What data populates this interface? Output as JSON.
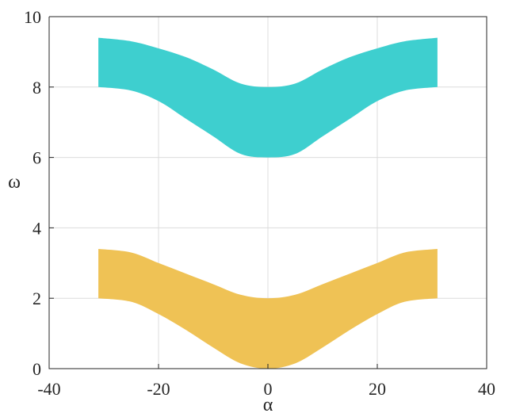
{
  "chart_data": {
    "type": "area",
    "xlabel": "α",
    "ylabel": "ω",
    "xlim": [
      -40,
      40
    ],
    "ylim": [
      0,
      10
    ],
    "xticks": [
      -40,
      -20,
      0,
      20,
      40
    ],
    "yticks": [
      0,
      2,
      4,
      6,
      8,
      10
    ],
    "grid": true,
    "legend": "none",
    "bands": [
      {
        "color": "#3ecfcf",
        "x": [
          -31,
          -25,
          -20,
          -15,
          -10,
          -5,
          0,
          5,
          10,
          15,
          20,
          25,
          31
        ],
        "upper": [
          9.4,
          9.3,
          9.1,
          8.85,
          8.5,
          8.1,
          8.0,
          8.1,
          8.5,
          8.85,
          9.1,
          9.3,
          9.4
        ],
        "lower": [
          8.0,
          7.9,
          7.6,
          7.1,
          6.6,
          6.1,
          6.0,
          6.1,
          6.6,
          7.1,
          7.6,
          7.9,
          8.0
        ]
      },
      {
        "color": "#efc255",
        "x": [
          -31,
          -25,
          -20,
          -15,
          -10,
          -5,
          0,
          5,
          10,
          15,
          20,
          25,
          31
        ],
        "upper": [
          3.4,
          3.3,
          3.0,
          2.7,
          2.4,
          2.1,
          2.0,
          2.1,
          2.4,
          2.7,
          3.0,
          3.3,
          3.4
        ],
        "lower": [
          2.0,
          1.9,
          1.55,
          1.1,
          0.6,
          0.15,
          0.0,
          0.15,
          0.6,
          1.1,
          1.55,
          1.9,
          2.0
        ]
      }
    ]
  }
}
